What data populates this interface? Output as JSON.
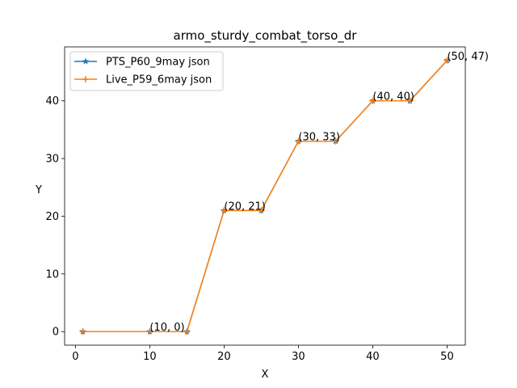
{
  "chart_data": {
    "type": "line",
    "title": "armo_sturdy_combat_torso_dr",
    "xlabel": "X",
    "ylabel": "Y",
    "xlim": [
      -1.45,
      52.45
    ],
    "ylim": [
      -2.35,
      49.35
    ],
    "xticks": [
      0,
      10,
      20,
      30,
      40,
      50
    ],
    "yticks": [
      0,
      10,
      20,
      30,
      40
    ],
    "grid": false,
    "legend_position": "top-left",
    "x": [
      1,
      10,
      15,
      20,
      25,
      30,
      35,
      40,
      45,
      50
    ],
    "series": [
      {
        "name": "PTS_P60_9may json",
        "values": [
          0,
          0,
          0,
          21,
          21,
          33,
          33,
          40,
          40,
          47
        ],
        "color": "#1f77b4",
        "marker": "star"
      },
      {
        "name": "Live_P59_6may json",
        "values": [
          0,
          0,
          0,
          21,
          21,
          33,
          33,
          40,
          40,
          47
        ],
        "color": "#ff7f0e",
        "marker": "plus"
      }
    ],
    "annotations": [
      {
        "x": 10,
        "y": 0,
        "text": "(10, 0)"
      },
      {
        "x": 20,
        "y": 21,
        "text": "(20, 21)"
      },
      {
        "x": 30,
        "y": 33,
        "text": "(30, 33)"
      },
      {
        "x": 40,
        "y": 40,
        "text": "(40, 40)"
      },
      {
        "x": 50,
        "y": 47,
        "text": "(50, 47)"
      }
    ]
  }
}
